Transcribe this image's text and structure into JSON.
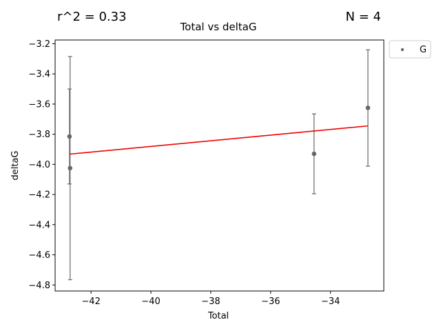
{
  "chart_data": {
    "type": "scatter",
    "title": "Total vs deltaG",
    "xlabel": "Total",
    "ylabel": "deltaG",
    "xlim": [
      -43.2,
      -32.22
    ],
    "ylim": [
      -4.84,
      -3.175
    ],
    "xticks": [
      -42,
      -40,
      -38,
      -36,
      -34
    ],
    "yticks": [
      -4.8,
      -4.6,
      -4.4,
      -4.2,
      -4.0,
      -3.8,
      -3.6,
      -3.4,
      -3.2
    ],
    "x_tick_labels": [
      "−42",
      "−40",
      "−38",
      "−36",
      "−34"
    ],
    "y_tick_labels": [
      "−4.8",
      "−4.6",
      "−4.4",
      "−4.2",
      "−4.0",
      "−3.8",
      "−3.6",
      "−3.4",
      "−3.2"
    ],
    "series": [
      {
        "name": "G",
        "color": "#666666",
        "points": [
          {
            "x": -42.72,
            "y": -3.815,
            "err_low": -4.13,
            "err_high": -3.5
          },
          {
            "x": -42.7,
            "y": -4.025,
            "err_low": -4.765,
            "err_high": -3.285
          },
          {
            "x": -34.55,
            "y": -3.93,
            "err_low": -4.195,
            "err_high": -3.665
          },
          {
            "x": -32.75,
            "y": -3.625,
            "err_low": -4.012,
            "err_high": -3.24
          }
        ]
      }
    ],
    "fit_line": {
      "color": "#ee0000",
      "x": [
        -42.72,
        -32.75
      ],
      "y": [
        -3.932,
        -3.745
      ]
    },
    "legend": {
      "entries": [
        "G"
      ],
      "placement": "outside-top-right"
    },
    "annotations": {
      "r2": "r^2 = 0.33",
      "n": "N = 4"
    },
    "grid": false
  }
}
